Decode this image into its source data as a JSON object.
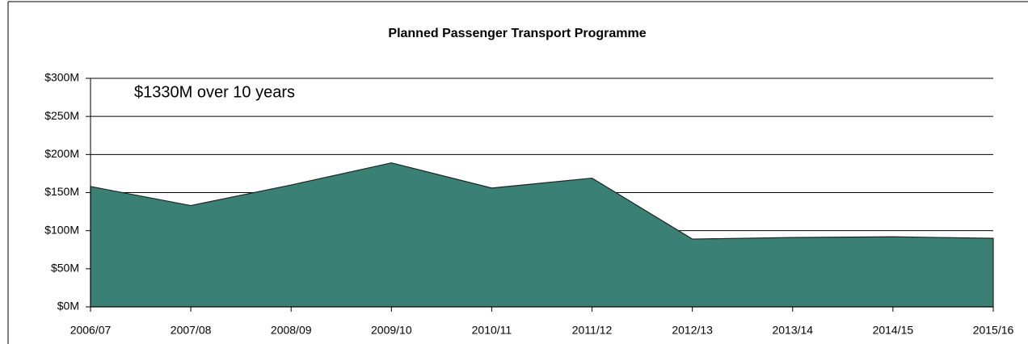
{
  "chart_data": {
    "type": "area",
    "title": "Planned Passenger Transport Programme",
    "annotation": "$1330M over 10 years",
    "categories": [
      "2006/07",
      "2007/08",
      "2008/09",
      "2009/10",
      "2010/11",
      "2011/12",
      "2012/13",
      "2013/14",
      "2014/15",
      "2015/16"
    ],
    "values": [
      158,
      133,
      160,
      189,
      156,
      169,
      89,
      91,
      92,
      90
    ],
    "color": "#3b8075",
    "ylim": [
      0,
      300
    ],
    "yticks": [
      {
        "value": 0,
        "label": "$0M"
      },
      {
        "value": 50,
        "label": "$50M"
      },
      {
        "value": 100,
        "label": "$100M"
      },
      {
        "value": 150,
        "label": "$150M"
      },
      {
        "value": 200,
        "label": "$200M"
      },
      {
        "value": 250,
        "label": "$250M"
      },
      {
        "value": 300,
        "label": "$300M"
      }
    ],
    "grid": true
  }
}
